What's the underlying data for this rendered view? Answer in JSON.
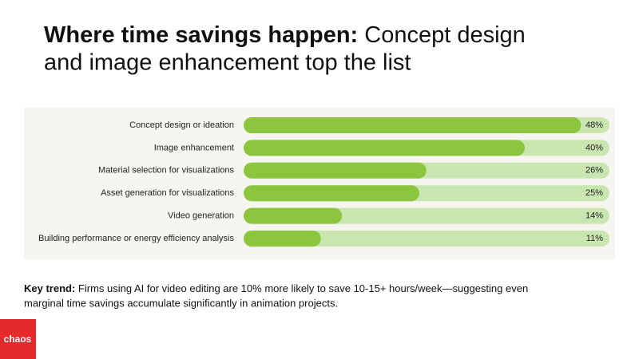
{
  "chart_data": {
    "type": "hbar",
    "title": {
      "bold": "Where time savings happen:",
      "line1": "Concept design",
      "line2": "and image enhancement top the list"
    },
    "categories": [
      "Concept design or ideation",
      "Image enhancement",
      "Material selection for visualizations",
      "Asset generation for visualizations",
      "Video generation",
      "Building performance or energy efficiency analysis"
    ],
    "values": [
      48,
      40,
      26,
      25,
      14,
      11
    ],
    "value_labels": [
      "48%",
      "40%",
      "26%",
      "25%",
      "14%",
      "11%"
    ],
    "color": "#8cc63f",
    "track_color": "#c9e6b1"
  },
  "note": {
    "label": "Key trend:",
    "lines": [
      "Firms using AI for video editing are 10% more likely to save 10-15+ hours/week—suggesting even",
      "marginal time savings accumulate significantly in animation projects."
    ]
  },
  "logo": "chaos"
}
